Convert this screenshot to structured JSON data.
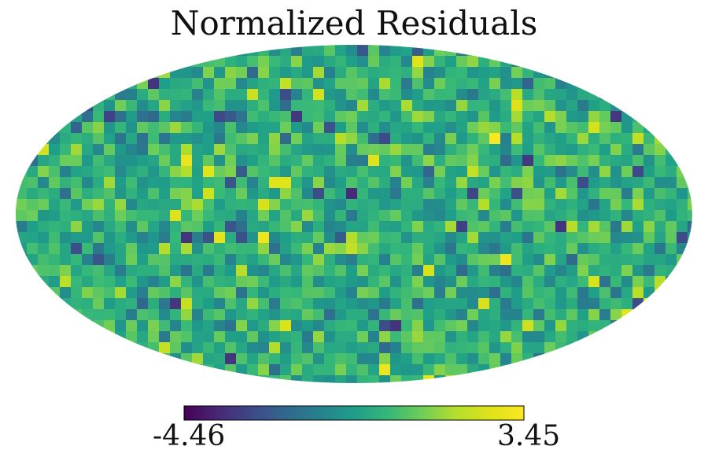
{
  "chart_data": {
    "type": "heatmap",
    "projection": "mollweide",
    "title": "Normalized Residuals",
    "xlabel": "",
    "ylabel": "",
    "colormap": "viridis",
    "colorbar": {
      "min_label": "-4.46",
      "max_label": "3.45",
      "min": -4.46,
      "max": 3.45,
      "orientation": "horizontal",
      "placement": "bottom"
    },
    "value_distribution": {
      "typical_min": -1.5,
      "typical_max": 1.5,
      "extreme_min": -4.46,
      "extreme_max": 3.45
    },
    "grid": false,
    "legend": "none"
  },
  "colors": {
    "viridis_0": "#440154",
    "viridis_25": "#3b528b",
    "viridis_50": "#21918c",
    "viridis_75": "#5ec962",
    "viridis_100": "#fde725"
  }
}
